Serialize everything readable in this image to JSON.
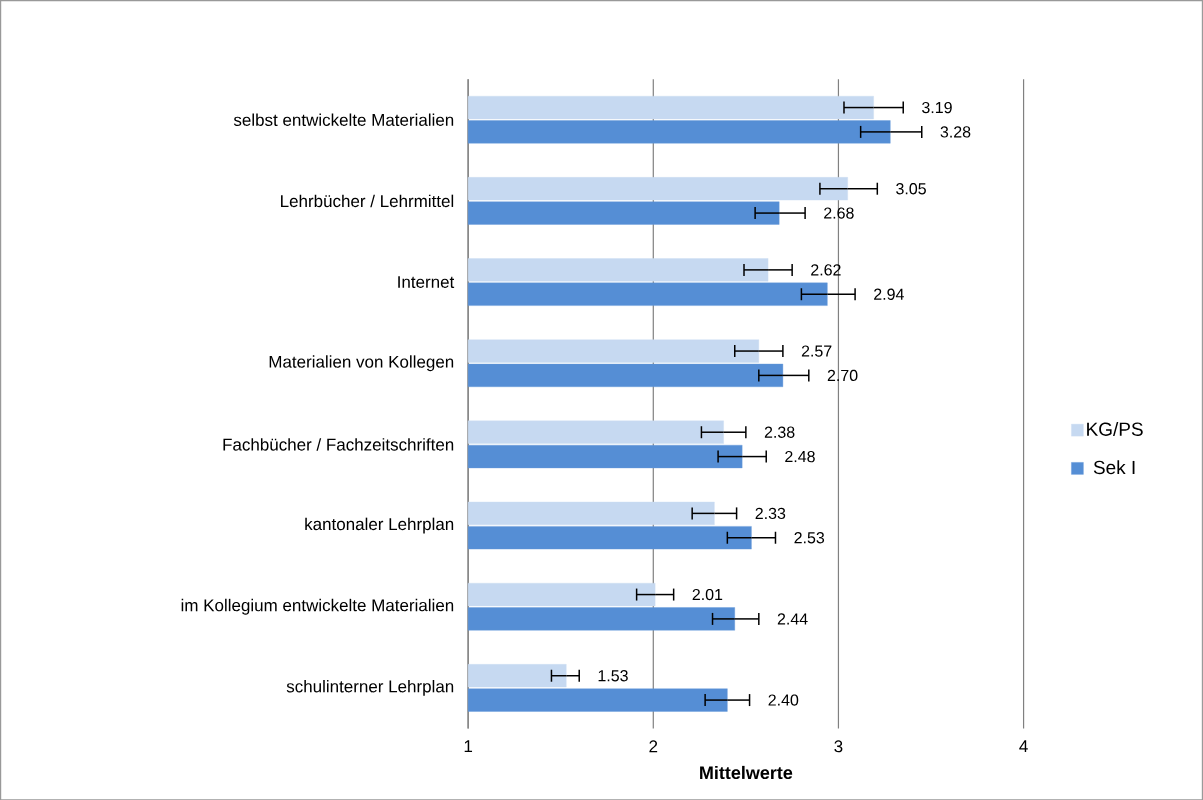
{
  "chart_data": {
    "type": "bar",
    "orientation": "horizontal",
    "xlabel": "Mittelwerte",
    "categories": [
      "selbst entwickelte Materialien",
      "Lehrbücher / Lehrmittel",
      "Internet",
      "Materialien von Kollegen",
      "Fachbücher / Fachzeitschriften",
      "kantonaler Lehrplan",
      "im Kollegium entwickelte Materialien",
      "schulinterner Lehrplan"
    ],
    "series": [
      {
        "name": "KG/PS",
        "color": "#c6d9f1",
        "values": [
          3.19,
          3.05,
          2.62,
          2.57,
          2.38,
          2.33,
          2.01,
          1.53
        ],
        "value_labels": [
          "3.19",
          "3.05",
          "2.62",
          "2.57",
          "2.38",
          "2.33",
          "2.01",
          "1.53"
        ],
        "errors": [
          [
            3.03,
            3.35
          ],
          [
            2.9,
            3.21
          ],
          [
            2.49,
            2.75
          ],
          [
            2.44,
            2.7
          ],
          [
            2.26,
            2.5
          ],
          [
            2.21,
            2.45
          ],
          [
            1.91,
            2.11
          ],
          [
            1.45,
            1.6
          ]
        ]
      },
      {
        "name": "Sek I",
        "color": "#558ed5",
        "values": [
          3.28,
          2.68,
          2.94,
          2.7,
          2.48,
          2.53,
          2.44,
          2.4
        ],
        "value_labels": [
          "3.28",
          "2.68",
          "2.94",
          "2.70",
          "2.48",
          "2.53",
          "2.44",
          "2.40"
        ],
        "errors": [
          [
            3.12,
            3.45
          ],
          [
            2.55,
            2.82
          ],
          [
            2.8,
            3.09
          ],
          [
            2.57,
            2.84
          ],
          [
            2.35,
            2.61
          ],
          [
            2.4,
            2.66
          ],
          [
            2.32,
            2.57
          ],
          [
            2.28,
            2.52
          ]
        ]
      }
    ],
    "xlim": [
      1,
      4
    ],
    "xticks": [
      1,
      2,
      3,
      4
    ],
    "grid": "x",
    "legend": "right"
  }
}
